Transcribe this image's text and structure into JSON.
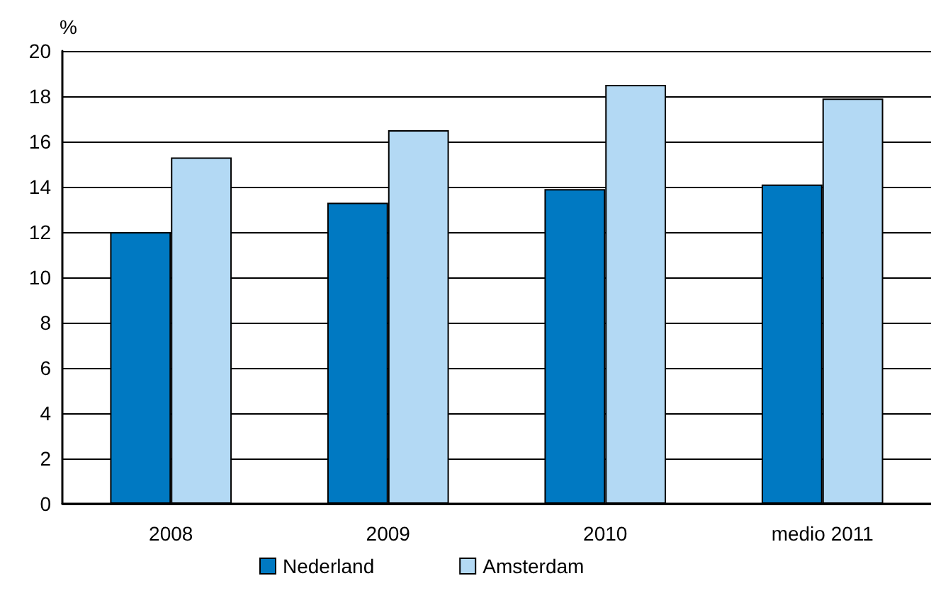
{
  "chart_data": {
    "type": "bar",
    "ylabel": "%",
    "categories": [
      "2008",
      "2009",
      "2010",
      "medio 2011"
    ],
    "series": [
      {
        "name": "Nederland",
        "color": "#0079c2",
        "values": [
          12.0,
          13.3,
          13.9,
          14.1
        ]
      },
      {
        "name": "Amsterdam",
        "color": "#b3d9f4",
        "values": [
          15.3,
          16.5,
          18.5,
          17.9
        ]
      }
    ],
    "ylim": [
      0,
      20
    ],
    "yticks": [
      0,
      2,
      4,
      6,
      8,
      10,
      12,
      14,
      16,
      18,
      20
    ],
    "grid": "y",
    "legend": "bottom"
  }
}
